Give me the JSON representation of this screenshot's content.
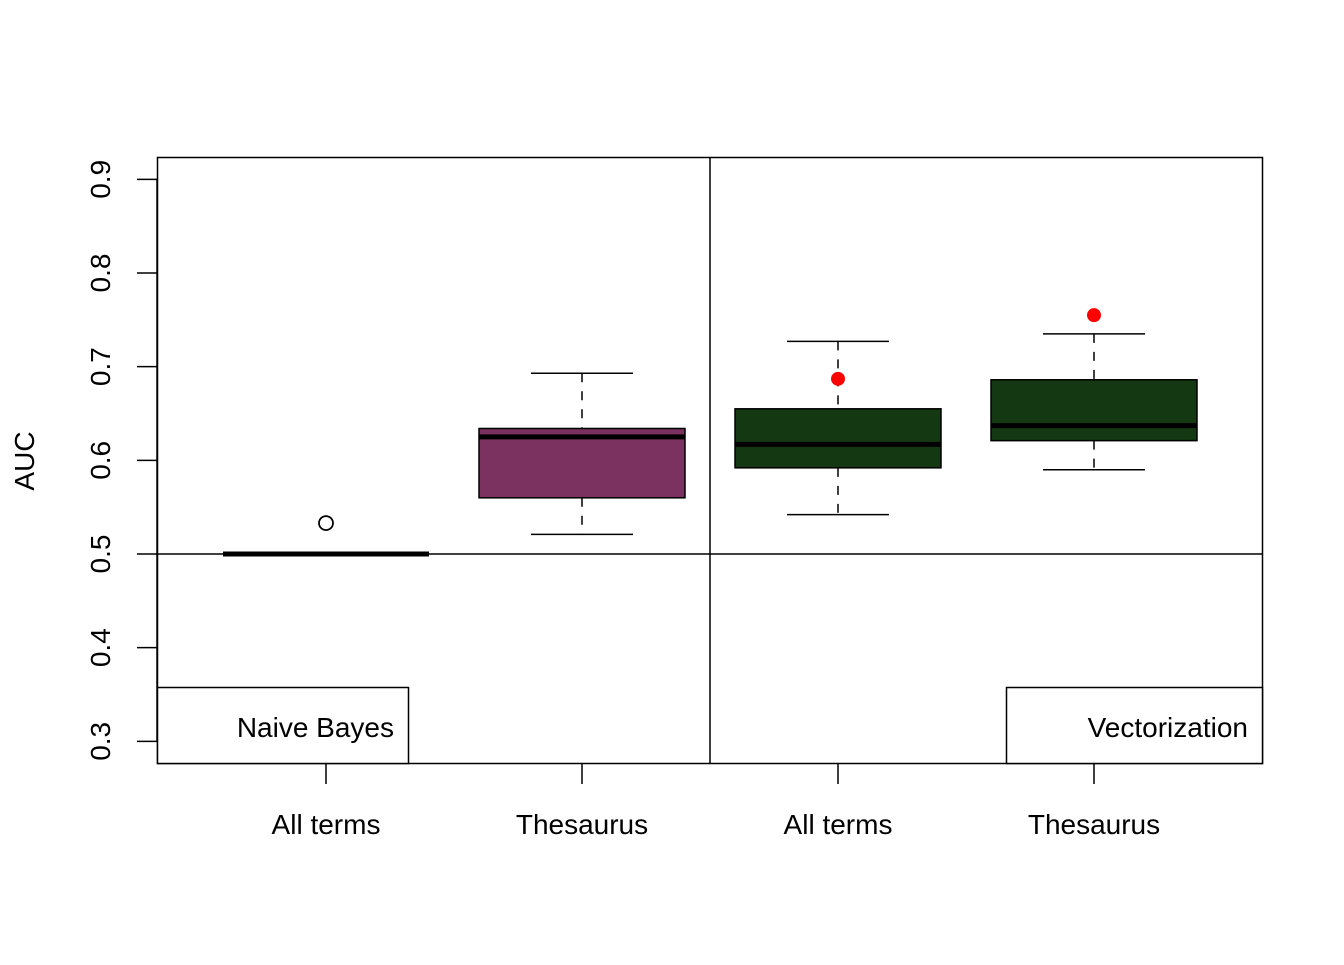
{
  "chart_data": {
    "type": "boxplot",
    "title": "",
    "xlabel": "",
    "ylabel": "AUC",
    "ylim": [
      0.277,
      0.925
    ],
    "yticks": [
      0.3,
      0.4,
      0.5,
      0.6,
      0.7,
      0.8,
      0.9
    ],
    "ytick_labels": [
      "0.3",
      "0.4",
      "0.5",
      "0.6",
      "0.7",
      "0.8",
      "0.9"
    ],
    "categories": [
      "All terms",
      "Thesaurus",
      "All terms",
      "Thesaurus"
    ],
    "reference_line": 0.5,
    "groups": [
      {
        "name": "Naive Bayes",
        "label_position": "bottom-left"
      },
      {
        "name": "Vectorization",
        "label_position": "bottom-right"
      }
    ],
    "boxes": [
      {
        "group": "Naive Bayes",
        "category": "All terms",
        "color": "#000000",
        "whisker_low": 0.5,
        "q1": 0.5,
        "median": 0.5,
        "q3": 0.5,
        "whisker_high": 0.5,
        "outliers": [
          0.533
        ],
        "highlight_points": []
      },
      {
        "group": "Naive Bayes",
        "category": "Thesaurus",
        "color": "#7B3260",
        "whisker_low": 0.521,
        "q1": 0.56,
        "median": 0.625,
        "q3": 0.634,
        "whisker_high": 0.693,
        "outliers": [],
        "highlight_points": []
      },
      {
        "group": "Vectorization",
        "category": "All terms",
        "color": "#133812",
        "whisker_low": 0.542,
        "q1": 0.592,
        "median": 0.617,
        "q3": 0.655,
        "whisker_high": 0.727,
        "outliers": [],
        "highlight_points": [
          0.687
        ]
      },
      {
        "group": "Vectorization",
        "category": "Thesaurus",
        "color": "#133812",
        "whisker_low": 0.59,
        "q1": 0.621,
        "median": 0.637,
        "q3": 0.686,
        "whisker_high": 0.735,
        "outliers": [],
        "highlight_points": [
          0.755
        ]
      }
    ],
    "highlight_point_color": "#FF0000",
    "grid": false,
    "legend": null
  },
  "labels": {
    "ylabel": "AUC",
    "group_left": "Naive Bayes",
    "group_right": "Vectorization",
    "x0": "All terms",
    "x1": "Thesaurus",
    "x2": "All terms",
    "x3": "Thesaurus"
  }
}
